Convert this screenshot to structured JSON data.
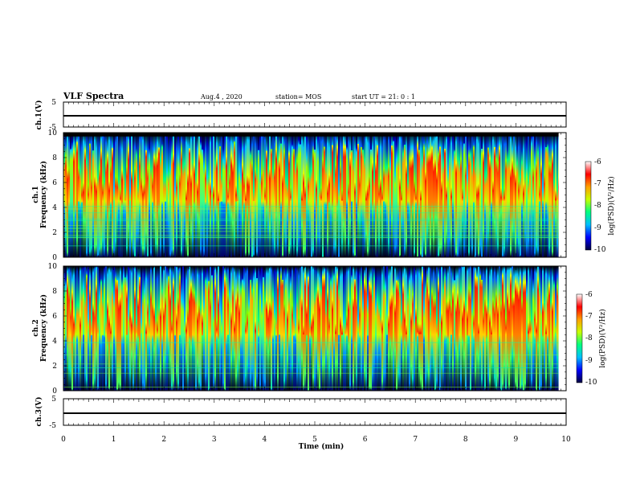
{
  "header": {
    "title": "VLF Spectra",
    "date": "Aug.4 , 2020",
    "station": "station= MOS",
    "start": "start UT = 21: 0 : 1"
  },
  "colors": {
    "colormap": [
      "#00006e",
      "#0000ff",
      "#00c8ff",
      "#00ff80",
      "#c8ff00",
      "#ff9900",
      "#ff0000",
      "#ffffff"
    ],
    "frame": "#000000",
    "background": "#000000"
  },
  "chart_data": [
    {
      "type": "line",
      "name": "waveform-ch1",
      "ylabel": "ch.1(V)",
      "ylim": [
        -5,
        5
      ],
      "yticks": [
        "5",
        "-5"
      ],
      "xlim": [
        0,
        10
      ],
      "series": [
        {
          "x": [
            0,
            10
          ],
          "values": [
            0,
            0
          ]
        }
      ]
    },
    {
      "type": "heatmap",
      "name": "spectrogram-ch1",
      "ylabel_lines": [
        "ch.1",
        "Frequency (kHz)"
      ],
      "ylim": [
        0,
        10
      ],
      "yticks": [
        "0",
        "2",
        "4",
        "6",
        "8",
        "10"
      ],
      "xlim": [
        0,
        10
      ],
      "data_end_min": 9.85,
      "intense_band_khz": [
        4.5,
        8.5
      ],
      "top_cutoff_khz": 9.7,
      "colorbar": {
        "label": "log(PSD)(V²/Hz)",
        "range": [
          -10,
          -6
        ],
        "ticks": [
          "-6",
          "-7",
          "-8",
          "-9",
          "-10"
        ]
      }
    },
    {
      "type": "heatmap",
      "name": "spectrogram-ch2",
      "ylabel_lines": [
        "ch.2",
        "Frequency (kHz)"
      ],
      "ylim": [
        0,
        10
      ],
      "yticks": [
        "0",
        "2",
        "4",
        "6",
        "8",
        "10"
      ],
      "xlim": [
        0,
        10
      ],
      "data_end_min": 9.85,
      "intense_band_khz": [
        4.5,
        8.5
      ],
      "top_cutoff_khz": 10,
      "colorbar": {
        "label": "log(PSD)(V²/Hz)",
        "range": [
          -10,
          -6
        ],
        "ticks": [
          "-6",
          "-7",
          "-8",
          "-9",
          "-10"
        ]
      }
    },
    {
      "type": "line",
      "name": "waveform-ch3",
      "ylabel": "ch.3(V)",
      "ylim": [
        -5,
        5
      ],
      "yticks": [
        "5",
        "-5"
      ],
      "xlim": [
        0,
        10
      ],
      "xticks": [
        "0",
        "1",
        "2",
        "3",
        "4",
        "5",
        "6",
        "7",
        "8",
        "9",
        "10"
      ],
      "xlabel": "Time (min)",
      "series": [
        {
          "x": [
            0,
            10
          ],
          "values": [
            0,
            0
          ]
        }
      ]
    }
  ]
}
